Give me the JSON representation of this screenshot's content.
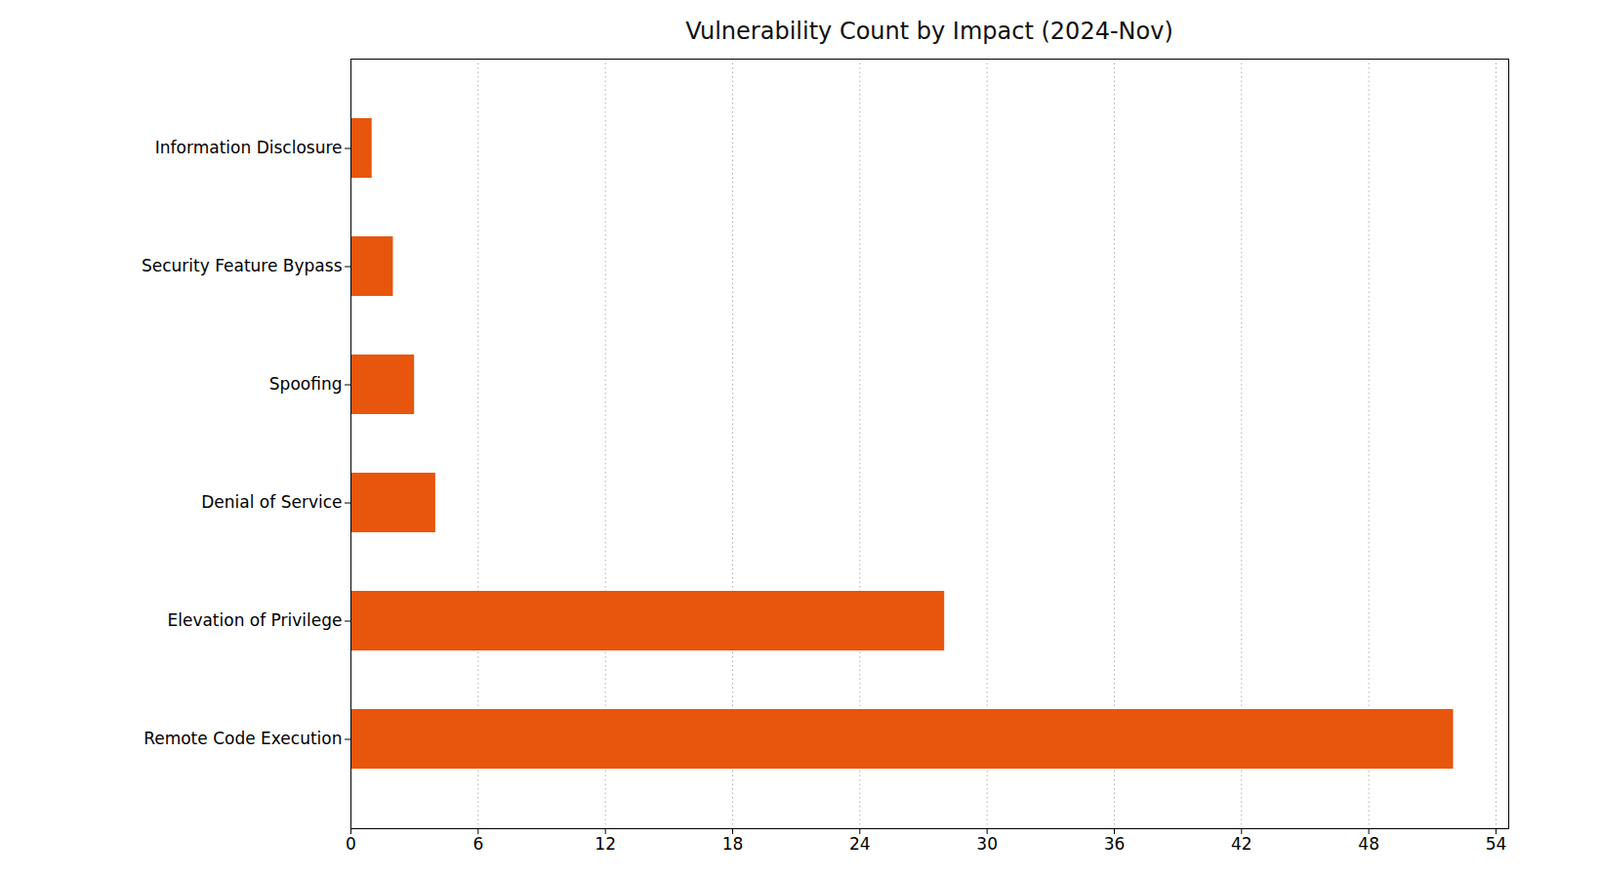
{
  "chart_data": {
    "type": "bar",
    "title": "Vulnerability Count by Impact (2024-Nov)",
    "orientation": "horizontal",
    "categories": [
      "Information Disclosure",
      "Security Feature Bypass",
      "Spoofing",
      "Denial of Service",
      "Elevation of Privilege",
      "Remote Code Execution"
    ],
    "values": [
      1,
      2,
      3,
      4,
      28,
      52
    ],
    "color": "#e8550d",
    "xlim": [
      0,
      54.6
    ],
    "xticks": [
      0,
      6,
      12,
      18,
      24,
      30,
      36,
      42,
      48,
      54
    ],
    "grid": true
  }
}
